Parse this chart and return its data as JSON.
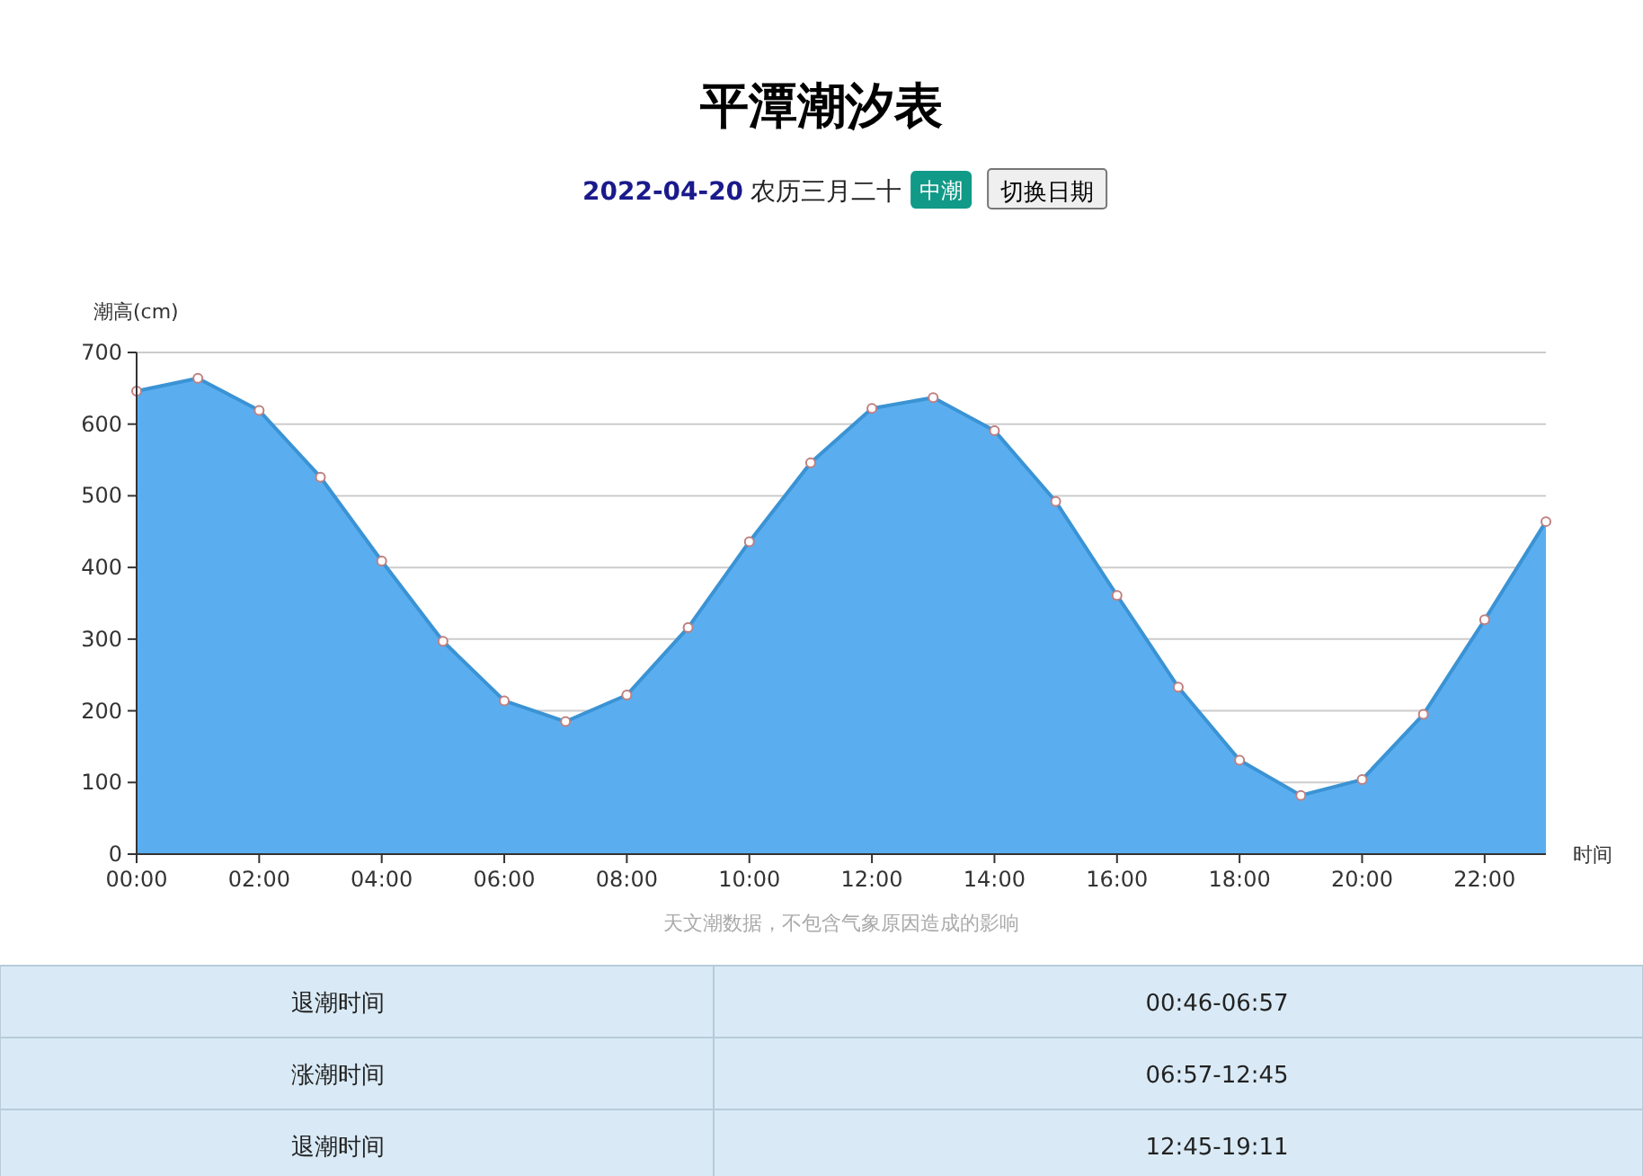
{
  "chart_data": {
    "type": "area",
    "title": "平潭潮汐表",
    "xlabel": "时间",
    "ylabel": "潮高(cm)",
    "annotations": [
      "2022-04-20",
      "农历三月二十",
      "中潮",
      "切换日期",
      "天文潮数据，不包含气象原因造成的影响",
      "退潮时间",
      "00:46-06:57",
      "涨潮时间",
      "06:57-12:45",
      "退潮时间",
      "12:45-19:11"
    ],
    "x": [
      0,
      1,
      2,
      3,
      4,
      5,
      6,
      7,
      8,
      9,
      10,
      11,
      12,
      13,
      14,
      15,
      16,
      17,
      18,
      19,
      20,
      21,
      22,
      23
    ],
    "series": [
      {
        "color": "#5aaef0",
        "values": [
          646,
          664,
          619,
          526,
          409,
          297,
          214,
          185,
          222,
          316,
          436,
          546,
          622,
          637,
          591,
          492,
          361,
          233,
          131,
          82,
          104,
          195,
          327,
          464
        ]
      }
    ],
    "xlim": [
      0,
      23
    ],
    "xticks": [
      {
        "value": 0,
        "label": "00:00"
      },
      {
        "value": 2,
        "label": "02:00"
      },
      {
        "value": 4,
        "label": "04:00"
      },
      {
        "value": 6,
        "label": "06:00"
      },
      {
        "value": 8,
        "label": "08:00"
      },
      {
        "value": 10,
        "label": "10:00"
      },
      {
        "value": 12,
        "label": "12:00"
      },
      {
        "value": 14,
        "label": "14:00"
      },
      {
        "value": 16,
        "label": "16:00"
      },
      {
        "value": 18,
        "label": "18:00"
      },
      {
        "value": 20,
        "label": "20:00"
      },
      {
        "value": 22,
        "label": "22:00"
      }
    ],
    "ylim": [
      0,
      700
    ],
    "yticks": [
      0,
      100,
      200,
      300,
      400,
      500,
      600,
      700
    ],
    "grid": "y",
    "marker": "circle",
    "line_style": "solid"
  }
}
